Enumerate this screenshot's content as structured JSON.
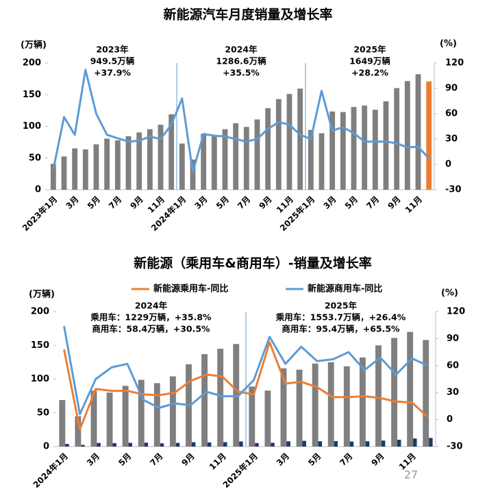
{
  "chart_data": [
    {
      "type": "bar_line",
      "title": "新能源汽车月度销量及增长率",
      "y_label": "(万辆)",
      "y2_label": "(%)",
      "categories": [
        "2023年1月",
        null,
        "3月",
        null,
        "5月",
        null,
        "7月",
        null,
        "9月",
        null,
        "11月",
        null,
        "2024年1月",
        null,
        "3月",
        null,
        "5月",
        null,
        "7月",
        null,
        "9月",
        null,
        "11月",
        null,
        "2025年1月",
        null,
        "3月",
        null,
        "5月",
        null,
        "7月",
        null,
        "9月",
        null,
        "11月",
        null
      ],
      "series": [
        {
          "type": "bar",
          "values": [
            40.8,
            52.5,
            65.3,
            63.6,
            71.7,
            80.6,
            78,
            84.6,
            90.4,
            95.6,
            102.6,
            119.1,
            72.9,
            47.7,
            88.3,
            85,
            95.5,
            104.9,
            99.1,
            110.9,
            128.7,
            143,
            151.2,
            159.6,
            94.4,
            89.2,
            123.5,
            122.6,
            130.7,
            132.9,
            126.2,
            139.5,
            160.4,
            171.5,
            182.3,
            171
          ],
          "colors": [
            "#7f7f7f",
            "#7f7f7f",
            "#7f7f7f",
            "#7f7f7f",
            "#7f7f7f",
            "#7f7f7f",
            "#7f7f7f",
            "#7f7f7f",
            "#7f7f7f",
            "#7f7f7f",
            "#7f7f7f",
            "#7f7f7f",
            "#7f7f7f",
            "#7f7f7f",
            "#7f7f7f",
            "#7f7f7f",
            "#7f7f7f",
            "#7f7f7f",
            "#7f7f7f",
            "#7f7f7f",
            "#7f7f7f",
            "#7f7f7f",
            "#7f7f7f",
            "#7f7f7f",
            "#7f7f7f",
            "#7f7f7f",
            "#7f7f7f",
            "#7f7f7f",
            "#7f7f7f",
            "#7f7f7f",
            "#7f7f7f",
            "#7f7f7f",
            "#7f7f7f",
            "#7f7f7f",
            "#7f7f7f",
            "#ed7d31"
          ]
        },
        {
          "type": "line",
          "axis": "y2",
          "color": "#5b9bd5",
          "values": [
            -6,
            56,
            35,
            112,
            60,
            35,
            31,
            27,
            28,
            33,
            30,
            47,
            78,
            -9,
            36,
            34,
            33,
            30,
            27,
            30,
            42,
            50,
            47,
            35,
            30,
            87,
            40,
            44,
            37,
            27,
            27,
            27,
            25,
            20,
            21,
            7
          ]
        }
      ],
      "ylim": [
        0,
        200
      ],
      "yticks": [
        0,
        50,
        100,
        150,
        200
      ],
      "y2lim": [
        -30,
        120
      ],
      "y2ticks": [
        -30,
        0,
        30,
        60,
        90,
        120
      ],
      "annotations": [
        [
          "2023年",
          "949.5万辆",
          "+37.9%"
        ],
        [
          "2024年",
          "1286.6万辆",
          "+35.5%"
        ],
        [
          "2025年",
          "1649万辆",
          "+28.2%"
        ]
      ]
    },
    {
      "type": "bar_line",
      "title": "新能源（乘用车&商用车）-销量及增长率",
      "y_label": "(万辆)",
      "y2_label": "(%)",
      "categories": [
        "2024年1月",
        null,
        "3月",
        null,
        "5月",
        null,
        "7月",
        null,
        "9月",
        null,
        "11月",
        null,
        "2025年1月",
        null,
        "3月",
        null,
        "5月",
        null,
        "7月",
        null,
        "9月",
        null,
        "11月",
        null
      ],
      "series": [
        {
          "type": "bar",
          "color": "#7f7f7f",
          "values": [
            69,
            45,
            83,
            80,
            90,
            99,
            94,
            104,
            122,
            137,
            145,
            152,
            89,
            83,
            116,
            114,
            123,
            125,
            119,
            132,
            150,
            161,
            170,
            158
          ]
        },
        {
          "type": "bar",
          "color": "#1f3864",
          "values": [
            3.9,
            2.4,
            5.4,
            5,
            5.5,
            5.8,
            4.8,
            5.5,
            6.5,
            6.1,
            6.6,
            7.6,
            5.2,
            5.6,
            7.8,
            8.5,
            7.9,
            8.1,
            7.5,
            7.9,
            8.9,
            10.1,
            12,
            12.8
          ]
        },
        {
          "type": "line",
          "axis": "y2",
          "name": "新能源乘用车-同比",
          "color": "#ed7d31",
          "values": [
            78,
            -11,
            34,
            32,
            32,
            28,
            27,
            30,
            43,
            50,
            48,
            31,
            28,
            86,
            40,
            42,
            36,
            25,
            25,
            26,
            24,
            20,
            19,
            3
          ]
        },
        {
          "type": "line",
          "axis": "y2",
          "name": "新能源商用车-同比",
          "color": "#5b9bd5",
          "values": [
            104,
            6,
            45,
            58,
            62,
            22,
            13,
            18,
            16,
            31,
            26,
            26,
            44,
            92,
            62,
            81,
            65,
            67,
            75,
            55,
            69,
            50,
            68,
            60
          ]
        }
      ],
      "ylim": [
        0,
        200
      ],
      "yticks": [
        0,
        50,
        100,
        150,
        200
      ],
      "y2lim": [
        -30,
        120
      ],
      "y2ticks": [
        -30,
        0,
        30,
        60,
        90,
        120
      ],
      "annotations": [
        [
          "2024年",
          "乘用车：1229万辆，+35.8%",
          "商用车：58.4万辆，+30.5%"
        ],
        [
          "2025年",
          "乘用车：1553.7万辆，+26.4%",
          "商用车：95.4万辆，+65.5%"
        ]
      ]
    }
  ],
  "page_number": "27"
}
